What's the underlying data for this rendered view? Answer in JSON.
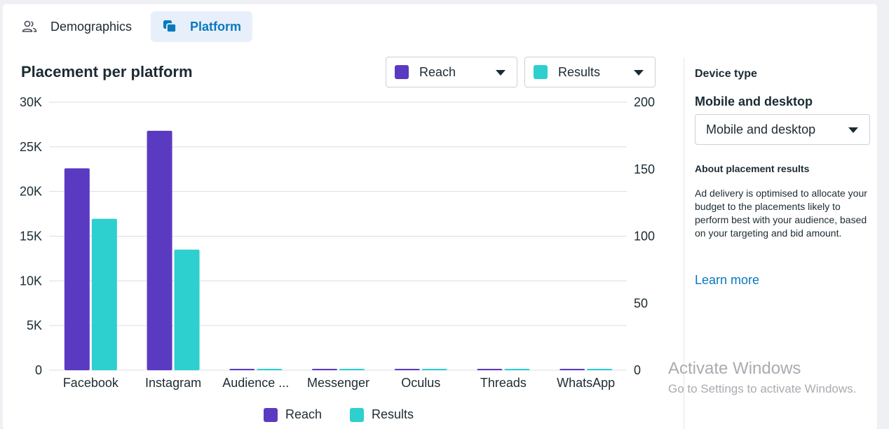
{
  "tabs": [
    {
      "label": "Demographics",
      "icon": "people-icon"
    },
    {
      "label": "Platform",
      "icon": "platform-icon",
      "active": true
    }
  ],
  "chart_title": "Placement per platform",
  "selectors": {
    "left": {
      "label": "Reach",
      "color": "#5b3ac2"
    },
    "right": {
      "label": "Results",
      "color": "#2ecfcf"
    }
  },
  "chart_data": {
    "type": "bar",
    "title": "Placement per platform",
    "categories": [
      "Facebook",
      "Instagram",
      "Audience ...",
      "Messenger",
      "Oculus",
      "Threads",
      "WhatsApp"
    ],
    "series": [
      {
        "name": "Reach",
        "axis": "left",
        "color": "#5b3ac2",
        "values": [
          22600,
          26800,
          0,
          0,
          0,
          0,
          0
        ]
      },
      {
        "name": "Results",
        "axis": "right",
        "color": "#2ecfcf",
        "values": [
          113,
          90,
          0,
          0,
          0,
          0,
          0
        ]
      }
    ],
    "y_left": {
      "range": [
        0,
        30000
      ],
      "ticks": [
        "0",
        "5K",
        "10K",
        "15K",
        "20K",
        "25K",
        "30K"
      ]
    },
    "y_right": {
      "range": [
        0,
        200
      ],
      "ticks": [
        "0",
        "50",
        "100",
        "150",
        "200"
      ]
    },
    "grid": true,
    "legend": "bottom-center"
  },
  "legend": [
    {
      "label": "Reach",
      "color": "#5b3ac2"
    },
    {
      "label": "Results",
      "color": "#2ecfcf"
    }
  ],
  "sidebar": {
    "device_type_title": "Device type",
    "device_label": "Mobile and desktop",
    "device_value": "Mobile and desktop",
    "about_title": "About placement results",
    "about_text": "Ad delivery is optimised to allocate your budget to the placements likely to perform best with your audience, based on your targeting and bid amount.",
    "learn_more": "Learn more"
  },
  "watermark": {
    "line1": "Activate Windows",
    "line2": "Go to Settings to activate Windows."
  }
}
